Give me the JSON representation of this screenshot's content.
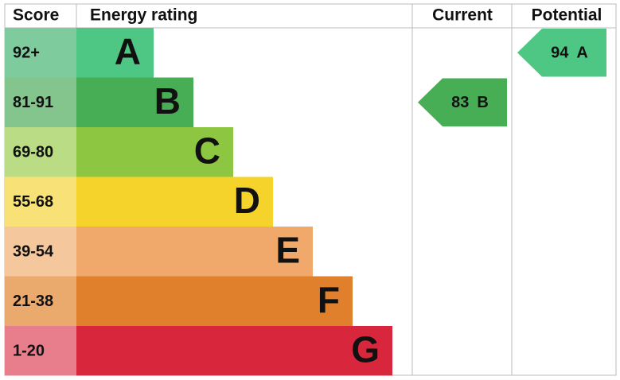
{
  "headers": {
    "score": "Score",
    "rating": "Energy rating",
    "current": "Current",
    "potential": "Potential"
  },
  "bands": [
    {
      "score": "92+",
      "letter": "A",
      "color": "#4fc784",
      "score_color": "#7ecb9e"
    },
    {
      "score": "81-91",
      "letter": "B",
      "color": "#47ae55",
      "score_color": "#84c58d"
    },
    {
      "score": "69-80",
      "letter": "C",
      "color": "#8dc640",
      "score_color": "#b9dc85"
    },
    {
      "score": "55-68",
      "letter": "D",
      "color": "#f5d32b",
      "score_color": "#f8e278"
    },
    {
      "score": "39-54",
      "letter": "E",
      "color": "#f0a96a",
      "score_color": "#f5c79c"
    },
    {
      "score": "21-38",
      "letter": "F",
      "color": "#e0802d",
      "score_color": "#eaa96d"
    },
    {
      "score": "1-20",
      "letter": "G",
      "color": "#d8273c",
      "score_color": "#e87d8b"
    }
  ],
  "current": {
    "value": 83,
    "letter": "B"
  },
  "potential": {
    "value": 94,
    "letter": "A"
  }
}
